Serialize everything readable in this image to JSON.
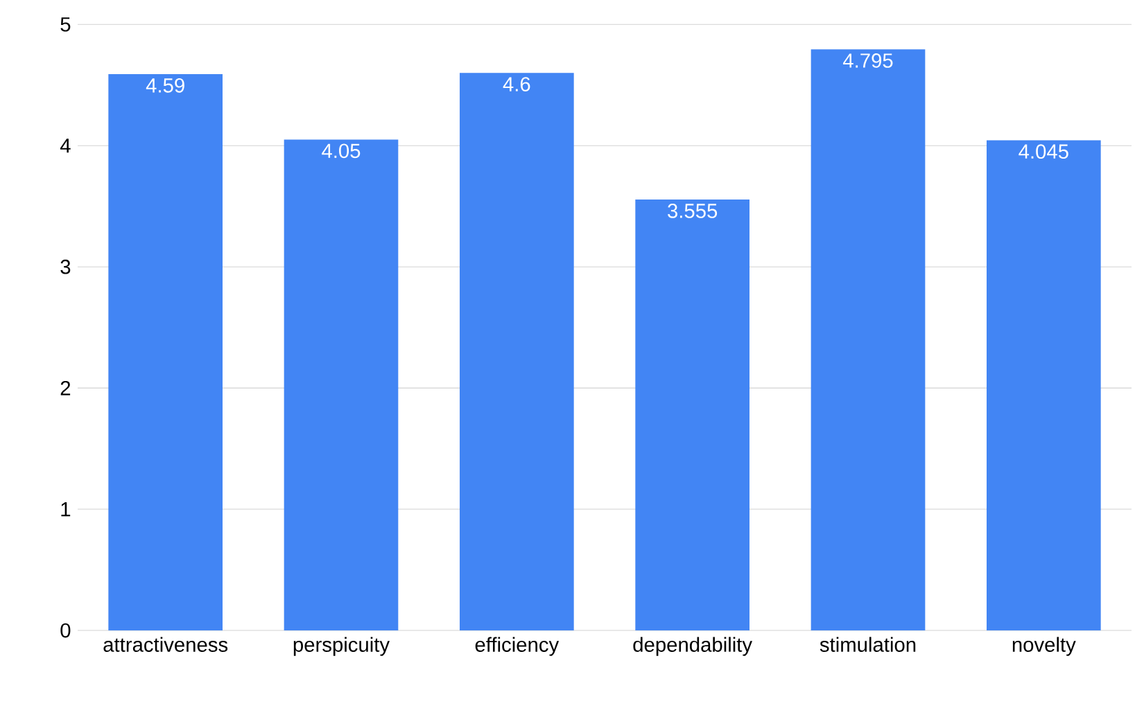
{
  "chart_data": {
    "type": "bar",
    "categories": [
      "attractiveness",
      "perspicuity",
      "efficiency",
      "dependability",
      "stimulation",
      "novelty"
    ],
    "values": [
      4.59,
      4.05,
      4.6,
      3.555,
      4.795,
      4.045
    ],
    "color": "#4285f4",
    "ylim": [
      0,
      5
    ],
    "yticks": [
      0,
      1,
      2,
      3,
      4,
      5
    ],
    "grid": "y",
    "data_labels": true
  }
}
